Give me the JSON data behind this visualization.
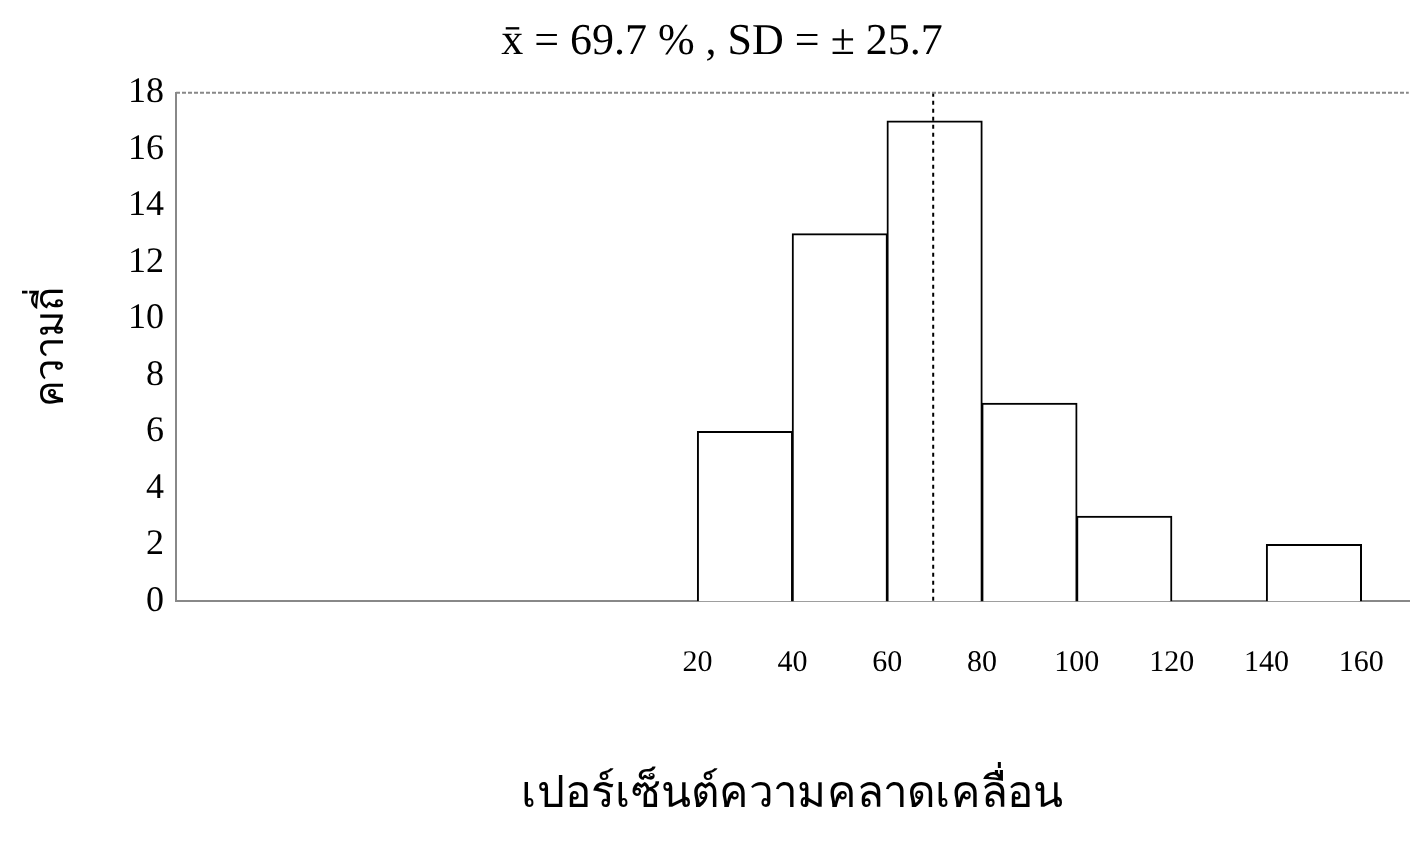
{
  "chart_data": {
    "type": "histogram",
    "title": "x̄ = 69.7 % , SD = ± 25.7",
    "xlabel": "เปอร์เซ็นต์ความคลาดเคลื่อน",
    "ylabel": "ความถี่",
    "bins": [
      20,
      40,
      60,
      80,
      100,
      120,
      140,
      160
    ],
    "values": [
      6,
      13,
      17,
      7,
      3,
      0,
      2
    ],
    "color": "#ffffff",
    "xlim": [
      -90,
      170
    ],
    "xticks": [
      20,
      40,
      60,
      80,
      100,
      120,
      140,
      160
    ],
    "ylim": [
      0,
      18
    ],
    "yticks": [
      0,
      2,
      4,
      6,
      8,
      10,
      12,
      14,
      16,
      18
    ],
    "ref_lines": [
      {
        "axis": "x",
        "value": 69.7,
        "label": null,
        "line_style": "dotted"
      }
    ],
    "grid": false,
    "legend": false
  }
}
